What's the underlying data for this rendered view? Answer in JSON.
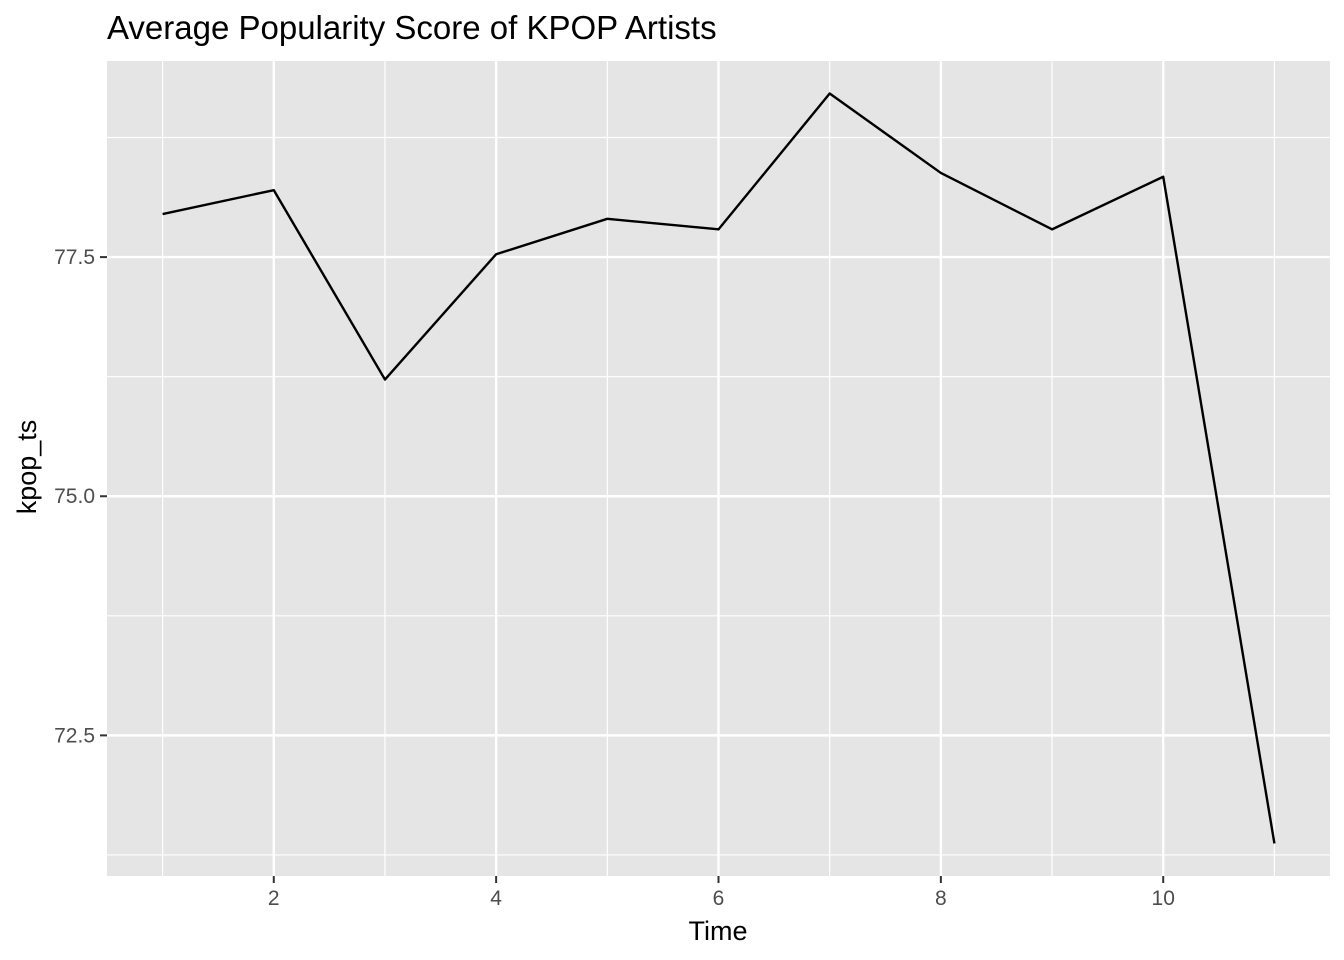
{
  "chart_data": {
    "type": "line",
    "title": "Average Popularity Score of KPOP Artists",
    "xlabel": "Time",
    "ylabel": "kpop_ts",
    "x": [
      1,
      2,
      3,
      4,
      5,
      6,
      7,
      8,
      9,
      10,
      11
    ],
    "series": [
      {
        "values": [
          77.95,
          78.2,
          76.22,
          77.53,
          77.9,
          77.79,
          79.21,
          78.38,
          77.79,
          78.34,
          71.37
        ],
        "color": "#000000"
      }
    ],
    "xlim": [
      0.5,
      11.5
    ],
    "ylim": [
      71.03,
      79.55
    ],
    "x_ticks": [
      2,
      4,
      6,
      8,
      10
    ],
    "x_tick_labels": [
      "2",
      "4",
      "6",
      "8",
      "10"
    ],
    "y_ticks": [
      72.5,
      75.0,
      77.5
    ],
    "y_tick_labels": [
      "72.5",
      "75.0",
      "77.5"
    ],
    "x_minor_ticks": [
      1,
      3,
      5,
      7,
      9,
      11
    ],
    "y_minor_ticks": [
      71.25,
      73.75,
      76.25,
      78.75
    ],
    "grid": true,
    "legend": "none",
    "panel_color": "#e5e5e5",
    "grid_color": "#ffffff"
  }
}
